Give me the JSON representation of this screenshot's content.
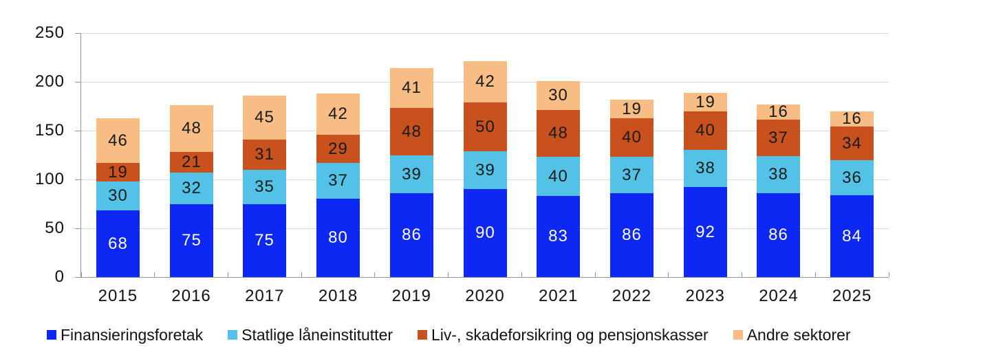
{
  "chart_data": {
    "type": "bar",
    "stacked": true,
    "title": "",
    "xlabel": "",
    "ylabel": "",
    "categories": [
      "2015",
      "2016",
      "2017",
      "2018",
      "2019",
      "2020",
      "2021",
      "2022",
      "2023",
      "2024",
      "2025"
    ],
    "series": [
      {
        "name": "Finansieringsforetak",
        "color": "#0d28f2",
        "label_color": "#ffffff",
        "values": [
          68,
          75,
          75,
          80,
          86,
          90,
          83,
          86,
          92,
          86,
          84
        ]
      },
      {
        "name": "Statlige låneinstitutter",
        "color": "#52c3e6",
        "label_color": "#1a1a1a",
        "values": [
          30,
          32,
          35,
          37,
          39,
          39,
          40,
          37,
          38,
          38,
          36
        ]
      },
      {
        "name": "Liv-, skadeforsikring og pensjonskasser",
        "color": "#c8511d",
        "label_color": "#1a1a1a",
        "values": [
          19,
          21,
          31,
          29,
          48,
          50,
          48,
          40,
          40,
          37,
          34
        ]
      },
      {
        "name": "Andre sektorer",
        "color": "#f7bd85",
        "label_color": "#1a1a1a",
        "values": [
          46,
          48,
          45,
          42,
          41,
          42,
          30,
          19,
          19,
          16,
          16
        ]
      }
    ],
    "ylim": [
      0,
      250
    ],
    "yticks": [
      0,
      50,
      100,
      150,
      200,
      250
    ],
    "grid": true,
    "data_labels": true,
    "legend_position": "bottom"
  },
  "colors": {
    "gridline": "#d9d9d9",
    "axis": "#949494",
    "text": "#111111"
  }
}
